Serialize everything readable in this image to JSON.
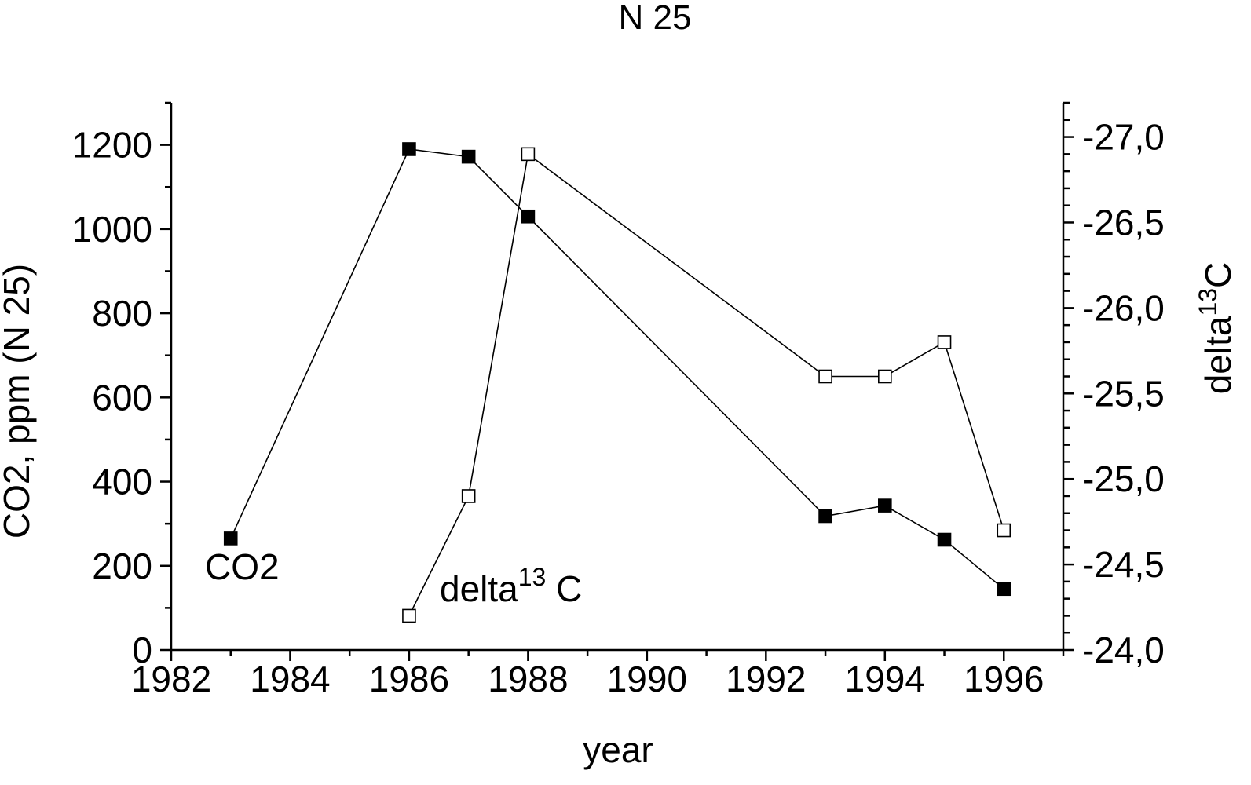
{
  "chart_data": {
    "type": "line",
    "title": "N 25",
    "xlabel": "year",
    "ylabel": "CO2, ppm (N 25)",
    "y2label": {
      "base": "delta",
      "sup": "13",
      "tail": "C"
    },
    "xlim": [
      1982,
      1997
    ],
    "ylim": [
      0,
      1300
    ],
    "y2lim": [
      -24.0,
      -27.2
    ],
    "y2_inverted": true,
    "x_ticks": [
      "1982",
      "1984",
      "1986",
      "1988",
      "1990",
      "1992",
      "1994",
      "1996"
    ],
    "y_ticks": [
      "0",
      "200",
      "400",
      "600",
      "800",
      "1000",
      "1200"
    ],
    "y2_ticks": [
      "-24,0",
      "-24,5",
      "-25,0",
      "-25,5",
      "-26,0",
      "-26,5",
      "-27,0"
    ],
    "grid": false,
    "series": [
      {
        "name": "CO2",
        "axis": "left",
        "marker": "filled-square",
        "x": [
          1983,
          1986,
          1987,
          1988,
          1993,
          1994,
          1995,
          1996
        ],
        "y": [
          265,
          1190,
          1172,
          1030,
          318,
          343,
          262,
          145
        ]
      },
      {
        "name": "delta13 C",
        "axis": "right",
        "marker": "open-square",
        "x": [
          1986,
          1987,
          1988,
          1993,
          1994,
          1995,
          1996
        ],
        "y": [
          -24.2,
          -24.9,
          -26.9,
          -25.6,
          -25.6,
          -25.8,
          -24.7
        ]
      }
    ],
    "annotations": [
      {
        "text": "CO2",
        "series": "CO2"
      },
      {
        "base": "delta",
        "sup": "13",
        "tail": " C",
        "series": "delta13 C"
      }
    ],
    "colors": {
      "line": "#000000",
      "marker_fill": "#000000",
      "open_marker_fill": "#ffffff"
    }
  }
}
